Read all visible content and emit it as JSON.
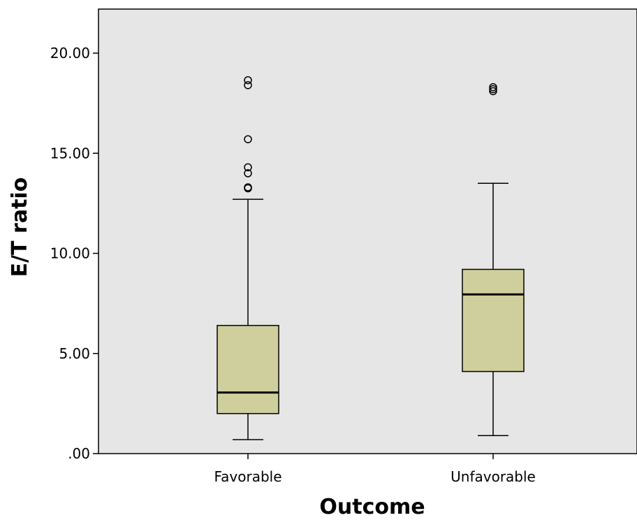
{
  "chart_data": {
    "type": "box",
    "xlabel": "Outcome",
    "ylabel": "E/T ratio",
    "ylim": [
      0,
      22.2
    ],
    "yticks": [
      0,
      5,
      10,
      15,
      20
    ],
    "ytick_labels": [
      ".00",
      "5.00",
      "10.00",
      "15.00",
      "20.00"
    ],
    "categories": [
      "Favorable",
      "Unfavorable"
    ],
    "boxes": [
      {
        "category": "Favorable",
        "whisker_low": 0.7,
        "q1": 2.0,
        "median": 3.05,
        "q3": 6.4,
        "whisker_high": 12.7,
        "outliers": [
          13.25,
          13.3,
          14.0,
          14.3,
          15.7,
          18.4,
          18.65
        ]
      },
      {
        "category": "Unfavorable",
        "whisker_low": 0.9,
        "q1": 4.1,
        "median": 7.95,
        "q3": 9.2,
        "whisker_high": 13.5,
        "outliers": [
          18.1,
          18.2,
          18.3
        ]
      }
    ],
    "colors": {
      "plot_background": "#e6e6e6",
      "box_fill": "#cfcf9d",
      "line": "#000000"
    },
    "grid": false,
    "legend": "none"
  }
}
